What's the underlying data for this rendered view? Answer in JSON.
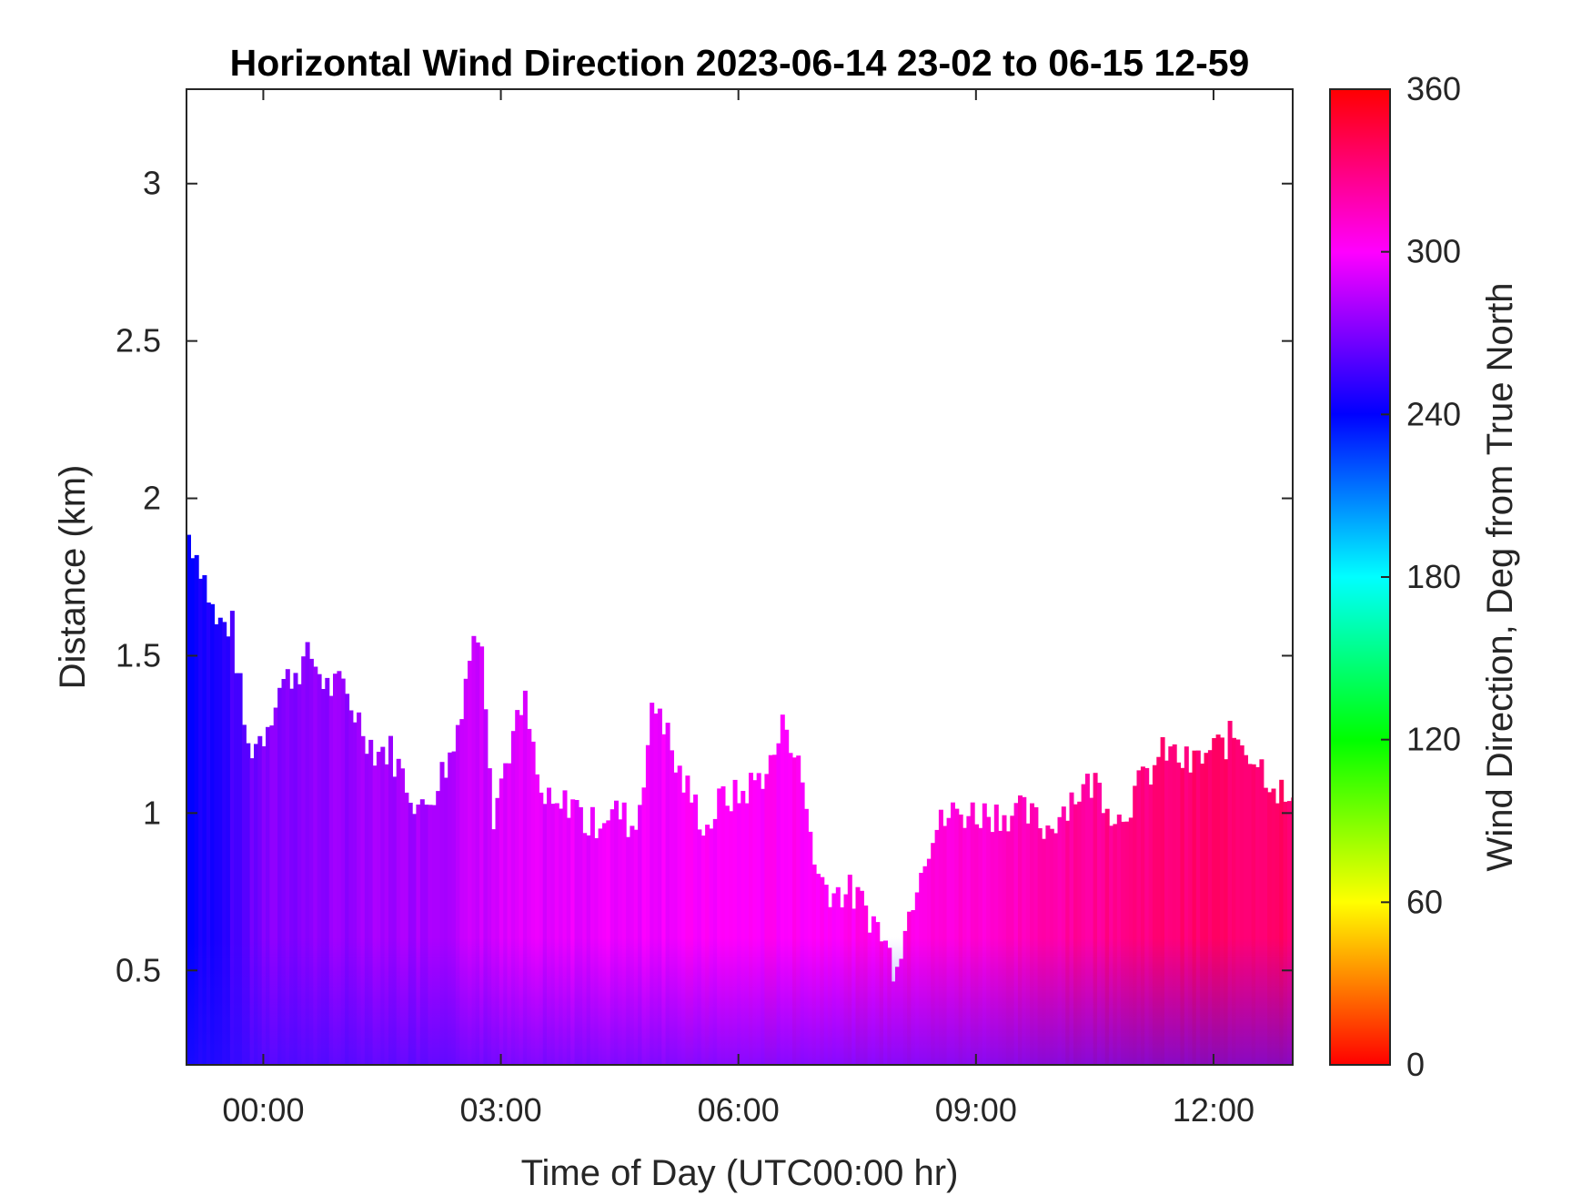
{
  "chart_data": {
    "type": "heatmap",
    "title": "Horizontal Wind Direction 2023-06-14 23-02 to 06-15 12-59",
    "xlabel": "Time of Day (UTC00:00 hr)",
    "ylabel": "Distance (km)",
    "colorbar_label": "Wind Direction, Deg from True North",
    "x_unit": "hours since 00:00 UTC",
    "xlim": [
      -0.97,
      13.0
    ],
    "ylim": [
      0.2,
      3.3
    ],
    "x_ticks": [
      0,
      3,
      6,
      9,
      12
    ],
    "x_tick_labels": [
      "00:00",
      "03:00",
      "06:00",
      "09:00",
      "12:00"
    ],
    "y_ticks": [
      0.5,
      1,
      1.5,
      2,
      2.5,
      3
    ],
    "y_tick_labels": [
      "0.5",
      "1",
      "1.5",
      "2",
      "2.5",
      "3"
    ],
    "colorbar": {
      "range": [
        0,
        360
      ],
      "ticks": [
        0,
        60,
        120,
        180,
        240,
        300,
        360
      ],
      "tick_labels": [
        "0",
        "60",
        "120",
        "180",
        "240",
        "300",
        "360"
      ],
      "colormap": "hsv-reversed"
    },
    "grid": false,
    "data_top_km": {
      "x": [
        -0.97,
        -0.8,
        -0.6,
        -0.4,
        -0.2,
        0.0,
        0.2,
        0.4,
        0.6,
        0.8,
        1.0,
        1.2,
        1.4,
        1.6,
        1.8,
        2.0,
        2.2,
        2.4,
        2.6,
        2.75,
        2.9,
        3.1,
        3.3,
        3.5,
        3.7,
        3.9,
        4.1,
        4.3,
        4.5,
        4.7,
        4.9,
        5.0,
        5.2,
        5.4,
        5.6,
        5.8,
        6.0,
        6.2,
        6.4,
        6.6,
        6.8,
        7.0,
        7.2,
        7.4,
        7.6,
        7.8,
        7.95,
        8.1,
        8.3,
        8.5,
        8.7,
        9.0,
        9.3,
        9.6,
        9.9,
        10.2,
        10.5,
        10.8,
        11.1,
        11.4,
        11.7,
        12.0,
        12.3,
        12.6,
        12.9,
        13.0
      ],
      "top": [
        1.9,
        1.8,
        1.6,
        1.6,
        1.2,
        1.25,
        1.4,
        1.45,
        1.5,
        1.4,
        1.4,
        1.3,
        1.2,
        1.2,
        1.1,
        1.0,
        1.1,
        1.2,
        1.5,
        1.6,
        1.0,
        1.2,
        1.35,
        1.05,
        1.0,
        1.05,
        0.95,
        1.0,
        1.0,
        0.95,
        1.3,
        1.35,
        1.15,
        1.05,
        0.95,
        1.05,
        1.05,
        1.1,
        1.15,
        1.3,
        1.1,
        0.8,
        0.75,
        0.75,
        0.7,
        0.62,
        0.52,
        0.62,
        0.85,
        0.95,
        1.0,
        1.0,
        1.0,
        1.0,
        0.95,
        1.05,
        1.1,
        0.98,
        1.1,
        1.2,
        1.15,
        1.2,
        1.25,
        1.15,
        1.05,
        1.0
      ]
    },
    "data_direction_deg": {
      "x": [
        -0.97,
        -0.5,
        0.0,
        1.0,
        2.0,
        3.0,
        4.0,
        5.0,
        6.0,
        7.0,
        8.0,
        9.0,
        10.0,
        11.0,
        12.0,
        13.0
      ],
      "direction_deg": [
        240,
        250,
        270,
        275,
        280,
        290,
        295,
        298,
        300,
        302,
        305,
        310,
        320,
        330,
        335,
        335
      ]
    },
    "direction_low_altitude_deg": 255
  }
}
